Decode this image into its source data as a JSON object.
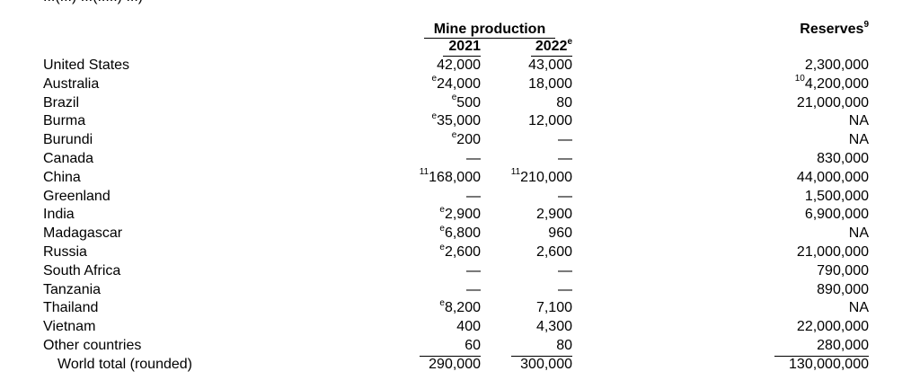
{
  "cutoff_text": "...(...) ...(.....) ...)",
  "header": {
    "mine_production": "Mine production",
    "year_2021": "2021",
    "year_2022": "2022",
    "year_2022_note": "e",
    "reserves": "Reserves",
    "reserves_note": "9"
  },
  "rows": [
    {
      "country": "United States",
      "p2021_note": "",
      "p2021": "42,000",
      "p2022_note": "",
      "p2022": "43,000",
      "reserves_note": "",
      "reserves": "2,300,000"
    },
    {
      "country": "Australia",
      "p2021_note": "e",
      "p2021": "24,000",
      "p2022_note": "",
      "p2022": "18,000",
      "reserves_note": "10",
      "reserves": "4,200,000"
    },
    {
      "country": "Brazil",
      "p2021_note": "e",
      "p2021": "500",
      "p2022_note": "",
      "p2022": "80",
      "reserves_note": "",
      "reserves": "21,000,000"
    },
    {
      "country": "Burma",
      "p2021_note": "e",
      "p2021": "35,000",
      "p2022_note": "",
      "p2022": "12,000",
      "reserves_note": "",
      "reserves": "NA"
    },
    {
      "country": "Burundi",
      "p2021_note": "e",
      "p2021": "200",
      "p2022_note": "",
      "p2022": "—",
      "reserves_note": "",
      "reserves": "NA"
    },
    {
      "country": "Canada",
      "p2021_note": "",
      "p2021": "—",
      "p2022_note": "",
      "p2022": "—",
      "reserves_note": "",
      "reserves": "830,000"
    },
    {
      "country": "China",
      "p2021_note": "11",
      "p2021": "168,000",
      "p2022_note": "11",
      "p2022": "210,000",
      "reserves_note": "",
      "reserves": "44,000,000"
    },
    {
      "country": "Greenland",
      "p2021_note": "",
      "p2021": "—",
      "p2022_note": "",
      "p2022": "—",
      "reserves_note": "",
      "reserves": "1,500,000"
    },
    {
      "country": "India",
      "p2021_note": "e",
      "p2021": "2,900",
      "p2022_note": "",
      "p2022": "2,900",
      "reserves_note": "",
      "reserves": "6,900,000"
    },
    {
      "country": "Madagascar",
      "p2021_note": "e",
      "p2021": "6,800",
      "p2022_note": "",
      "p2022": "960",
      "reserves_note": "",
      "reserves": "NA"
    },
    {
      "country": "Russia",
      "p2021_note": "e",
      "p2021": "2,600",
      "p2022_note": "",
      "p2022": "2,600",
      "reserves_note": "",
      "reserves": "21,000,000"
    },
    {
      "country": "South Africa",
      "p2021_note": "",
      "p2021": "—",
      "p2022_note": "",
      "p2022": "—",
      "reserves_note": "",
      "reserves": "790,000"
    },
    {
      "country": "Tanzania",
      "p2021_note": "",
      "p2021": "—",
      "p2022_note": "",
      "p2022": "—",
      "reserves_note": "",
      "reserves": "890,000"
    },
    {
      "country": "Thailand",
      "p2021_note": "e",
      "p2021": "8,200",
      "p2022_note": "",
      "p2022": "7,100",
      "reserves_note": "",
      "reserves": "NA"
    },
    {
      "country": "Vietnam",
      "p2021_note": "",
      "p2021": "400",
      "p2022_note": "",
      "p2022": "4,300",
      "reserves_note": "",
      "reserves": "22,000,000"
    },
    {
      "country": "Other countries",
      "p2021_note": "",
      "p2021": "60",
      "p2022_note": "",
      "p2022": "80",
      "reserves_note": "",
      "reserves": "280,000"
    }
  ],
  "total": {
    "label": "World total (rounded)",
    "p2021": "290,000",
    "p2022": "300,000",
    "reserves": "130,000,000"
  }
}
